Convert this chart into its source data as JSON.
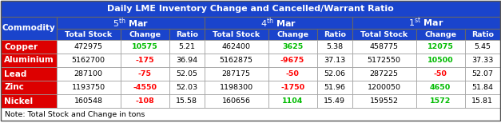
{
  "title": "Daily LME Inventory Change and Cancelled/Warrant Ratio",
  "note": "Note: Total Stock and Change in tons",
  "date_bases": [
    "5",
    "4",
    "1"
  ],
  "date_superscripts": [
    "th",
    "th",
    "st"
  ],
  "sub_headers": [
    "Total Stock",
    "Change",
    "Ratio"
  ],
  "data": [
    {
      "commodity": "Copper",
      "d1_ts": "472975",
      "d1_ch": "10575",
      "d1_ch_color": "#00bb00",
      "d1_r": "5.21",
      "d2_ts": "462400",
      "d2_ch": "3625",
      "d2_ch_color": "#00bb00",
      "d2_r": "5.38",
      "d3_ts": "458775",
      "d3_ch": "12075",
      "d3_ch_color": "#00bb00",
      "d3_r": "5.45"
    },
    {
      "commodity": "Aluminium",
      "d1_ts": "5162700",
      "d1_ch": "-175",
      "d1_ch_color": "#ff0000",
      "d1_r": "36.94",
      "d2_ts": "5162875",
      "d2_ch": "-9675",
      "d2_ch_color": "#ff0000",
      "d2_r": "37.13",
      "d3_ts": "5172550",
      "d3_ch": "10500",
      "d3_ch_color": "#00bb00",
      "d3_r": "37.33"
    },
    {
      "commodity": "Lead",
      "d1_ts": "287100",
      "d1_ch": "-75",
      "d1_ch_color": "#ff0000",
      "d1_r": "52.05",
      "d2_ts": "287175",
      "d2_ch": "-50",
      "d2_ch_color": "#ff0000",
      "d2_r": "52.06",
      "d3_ts": "287225",
      "d3_ch": "-50",
      "d3_ch_color": "#ff0000",
      "d3_r": "52.07"
    },
    {
      "commodity": "Zinc",
      "d1_ts": "1193750",
      "d1_ch": "-4550",
      "d1_ch_color": "#ff0000",
      "d1_r": "52.03",
      "d2_ts": "1198300",
      "d2_ch": "-1750",
      "d2_ch_color": "#ff0000",
      "d2_r": "51.96",
      "d3_ts": "1200050",
      "d3_ch": "4650",
      "d3_ch_color": "#00bb00",
      "d3_r": "51.84"
    },
    {
      "commodity": "Nickel",
      "d1_ts": "160548",
      "d1_ch": "-108",
      "d1_ch_color": "#ff0000",
      "d1_r": "15.58",
      "d2_ts": "160656",
      "d2_ch": "1104",
      "d2_ch_color": "#00bb00",
      "d2_r": "15.49",
      "d3_ts": "159552",
      "d3_ch": "1572",
      "d3_ch_color": "#00bb00",
      "d3_r": "15.81"
    }
  ],
  "title_bg": "#1a44cc",
  "title_color": "#ffffff",
  "header_bg": "#1a44cc",
  "header_color": "#ffffff",
  "commodity_bg": "#dd0000",
  "commodity_color": "#ffffff",
  "border_color": "#999999",
  "note_color": "#000000",
  "fig_w": 6.27,
  "fig_h": 1.64,
  "dpi": 100
}
